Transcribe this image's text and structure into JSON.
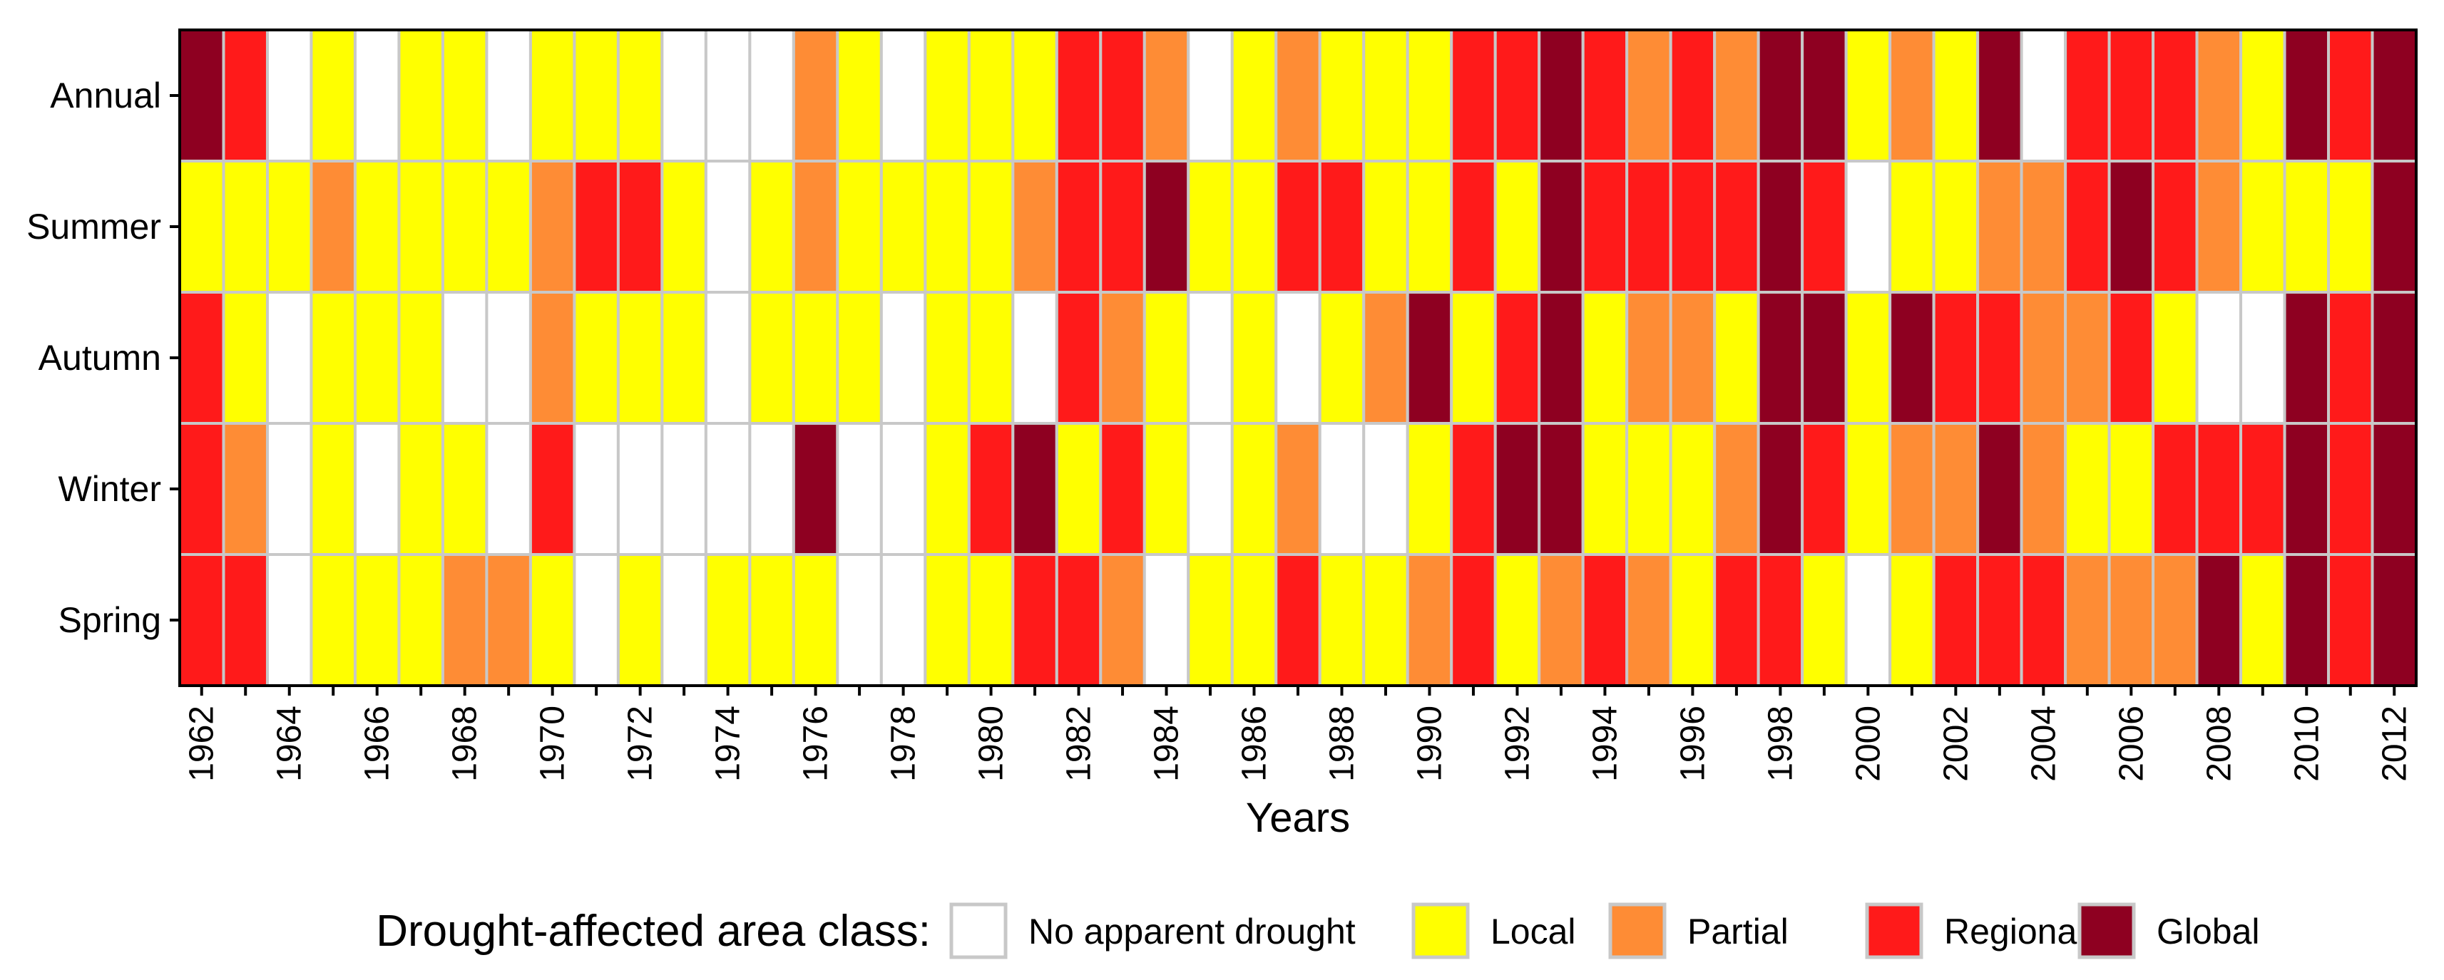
{
  "chart_data": {
    "type": "heatmap",
    "title": "",
    "xlabel": "Years",
    "ylabel": "",
    "x": [
      1962,
      1963,
      1964,
      1965,
      1966,
      1967,
      1968,
      1969,
      1970,
      1971,
      1972,
      1973,
      1974,
      1975,
      1976,
      1977,
      1978,
      1979,
      1980,
      1981,
      1982,
      1983,
      1984,
      1985,
      1986,
      1987,
      1988,
      1989,
      1990,
      1991,
      1992,
      1993,
      1994,
      1995,
      1996,
      1997,
      1998,
      1999,
      2000,
      2001,
      2002,
      2003,
      2004,
      2005,
      2006,
      2007,
      2008,
      2009,
      2010,
      2011,
      2012
    ],
    "x_tick_labels": [
      "1962",
      "1964",
      "1966",
      "1968",
      "1970",
      "1972",
      "1974",
      "1976",
      "1978",
      "1980",
      "1982",
      "1984",
      "1986",
      "1988",
      "1990",
      "1992",
      "1994",
      "1996",
      "1998",
      "2000",
      "2002",
      "2004",
      "2006",
      "2008",
      "2010",
      "2012"
    ],
    "rows": [
      "Annual",
      "Summer",
      "Autumn",
      "Winter",
      "Spring"
    ],
    "class_codes": {
      "0": "No apparent drought",
      "1": "Local",
      "2": "Partial",
      "3": "Regional",
      "4": "Global"
    },
    "values": [
      [
        4,
        3,
        0,
        1,
        0,
        1,
        1,
        0,
        1,
        1,
        1,
        0,
        0,
        0,
        2,
        1,
        0,
        1,
        1,
        1,
        3,
        3,
        2,
        0,
        1,
        2,
        1,
        1,
        1,
        3,
        3,
        4,
        3,
        2,
        3,
        2,
        4,
        4,
        1,
        2,
        1,
        4,
        0,
        3,
        3,
        3,
        2,
        1,
        4,
        3,
        4
      ],
      [
        1,
        1,
        1,
        2,
        1,
        1,
        1,
        1,
        2,
        3,
        3,
        1,
        0,
        1,
        2,
        1,
        1,
        1,
        1,
        2,
        3,
        3,
        4,
        1,
        1,
        3,
        3,
        1,
        1,
        3,
        1,
        4,
        3,
        3,
        3,
        3,
        4,
        3,
        0,
        1,
        1,
        2,
        2,
        3,
        4,
        3,
        2,
        1,
        1,
        1,
        4
      ],
      [
        3,
        1,
        0,
        1,
        1,
        1,
        0,
        0,
        2,
        1,
        1,
        1,
        0,
        1,
        1,
        1,
        0,
        1,
        1,
        0,
        3,
        2,
        1,
        0,
        1,
        0,
        1,
        2,
        4,
        1,
        3,
        4,
        1,
        2,
        2,
        1,
        4,
        4,
        1,
        4,
        3,
        3,
        2,
        2,
        3,
        1,
        0,
        0,
        4,
        3,
        4
      ],
      [
        3,
        2,
        0,
        1,
        0,
        1,
        1,
        0,
        3,
        0,
        0,
        0,
        0,
        0,
        4,
        0,
        0,
        1,
        3,
        4,
        1,
        3,
        1,
        0,
        1,
        2,
        0,
        0,
        1,
        3,
        4,
        4,
        1,
        1,
        1,
        2,
        4,
        3,
        1,
        2,
        2,
        4,
        2,
        1,
        1,
        3,
        3,
        3,
        4,
        3,
        4
      ],
      [
        3,
        3,
        0,
        1,
        1,
        1,
        2,
        2,
        1,
        0,
        1,
        0,
        1,
        1,
        1,
        0,
        0,
        1,
        1,
        3,
        3,
        2,
        0,
        1,
        1,
        3,
        1,
        1,
        2,
        3,
        1,
        2,
        3,
        2,
        1,
        3,
        3,
        1,
        0,
        1,
        3,
        3,
        3,
        2,
        2,
        2,
        4,
        1,
        4,
        3,
        4
      ]
    ],
    "legend": {
      "title": "Drought-affected area class:",
      "position": "bottom",
      "items": [
        {
          "label": "No apparent drought",
          "color": "#ffffff"
        },
        {
          "label": "Local",
          "color": "#ffff00"
        },
        {
          "label": "Partial",
          "color": "#fe8c35"
        },
        {
          "label": "Regional",
          "color": "#ff1a1a"
        },
        {
          "label": "Global",
          "color": "#8e0021"
        }
      ]
    },
    "colors": [
      "#ffffff",
      "#ffff00",
      "#fe8c35",
      "#ff1a1a",
      "#8e0021"
    ],
    "grid_color": "#c8c8c8",
    "axis_color": "#000000"
  }
}
